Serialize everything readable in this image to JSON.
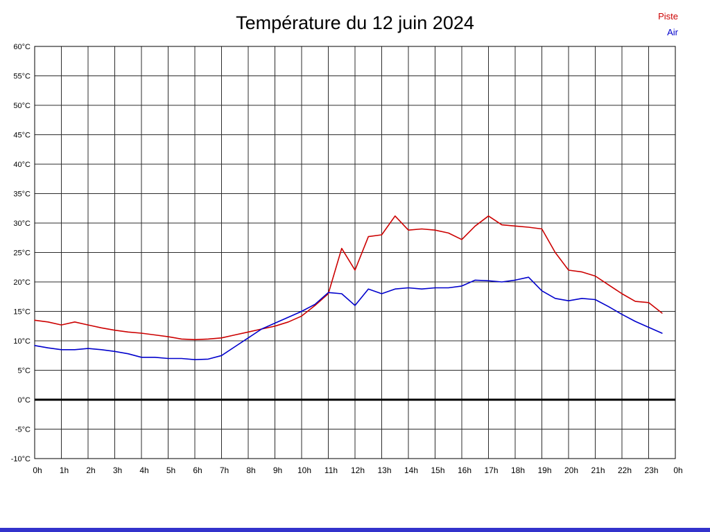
{
  "chart_data": {
    "type": "line",
    "title": "Température du 12 juin 2024",
    "xlabel": "",
    "ylabel": "",
    "ylim": [
      -10,
      60
    ],
    "y_tick_step": 5,
    "grid": true,
    "zero_line_value": 0,
    "legend_position": "top-right",
    "footer_bar_color": "#3333cc",
    "y_ticks": [
      "60°C",
      "55°C",
      "50°C",
      "45°C",
      "40°C",
      "35°C",
      "30°C",
      "25°C",
      "20°C",
      "15°C",
      "10°C",
      "5°C",
      "0°C",
      "-5°C",
      "-10°C"
    ],
    "x_ticks": [
      "0h",
      "1h",
      "2h",
      "3h",
      "4h",
      "5h",
      "6h",
      "7h",
      "8h",
      "9h",
      "10h",
      "11h",
      "12h",
      "13h",
      "14h",
      "15h",
      "16h",
      "17h",
      "18h",
      "19h",
      "20h",
      "21h",
      "22h",
      "23h",
      "0h"
    ],
    "x_values": [
      0,
      0.5,
      1,
      1.5,
      2,
      2.5,
      3,
      3.5,
      4,
      4.5,
      5,
      5.5,
      6,
      6.5,
      7,
      7.5,
      8,
      8.5,
      9,
      9.5,
      10,
      10.5,
      11,
      11.5,
      12,
      12.5,
      13,
      13.5,
      14,
      14.5,
      15,
      15.5,
      16,
      16.5,
      17,
      17.5,
      18,
      18.5,
      19,
      19.5,
      20,
      20.5,
      21,
      21.5,
      22,
      22.5,
      23,
      23.5
    ],
    "series": [
      {
        "name": "Piste",
        "color": "#cc0000",
        "values": [
          13.5,
          13.2,
          12.7,
          13.2,
          12.7,
          12.2,
          11.8,
          11.5,
          11.3,
          11.0,
          10.7,
          10.3,
          10.2,
          10.3,
          10.5,
          11.0,
          11.5,
          12.0,
          12.5,
          13.2,
          14.2,
          16.0,
          18.0,
          25.7,
          22.0,
          27.7,
          28.0,
          31.2,
          28.8,
          29.0,
          28.8,
          28.3,
          27.2,
          29.5,
          31.2,
          29.7,
          29.5,
          29.3,
          29.0,
          25.0,
          22.0,
          21.7,
          21.0,
          19.5,
          18.0,
          16.7,
          16.5,
          14.7
        ]
      },
      {
        "name": "Air",
        "color": "#0000cc",
        "values": [
          9.2,
          8.8,
          8.5,
          8.5,
          8.7,
          8.5,
          8.2,
          7.8,
          7.2,
          7.2,
          7.0,
          7.0,
          6.8,
          6.9,
          7.5,
          9.0,
          10.5,
          12.0,
          13.0,
          14.0,
          15.0,
          16.2,
          18.2,
          18.0,
          16.0,
          18.8,
          18.0,
          18.8,
          19.0,
          18.8,
          19.0,
          19.0,
          19.3,
          20.3,
          20.2,
          20.0,
          20.3,
          20.8,
          18.5,
          17.2,
          16.8,
          17.2,
          17.0,
          15.8,
          14.5,
          13.3,
          12.3,
          11.3
        ]
      }
    ]
  }
}
